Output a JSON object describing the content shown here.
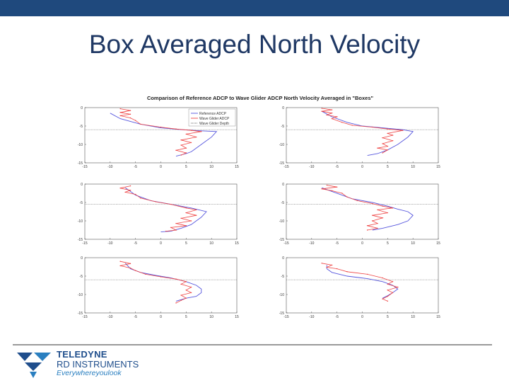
{
  "slide": {
    "title": "Box Averaged North Velocity"
  },
  "logo": {
    "line1": "TELEDYNE",
    "line2": "RD INSTRUMENTS",
    "tagline": "Everywhereyoulook",
    "colors": {
      "dark": "#1f4e8c",
      "light": "#2a7fc0"
    }
  },
  "chart_data": {
    "type": "line",
    "suptitle": "Comparison of Reference ADCP to Wave Glider ADCP North Velocity Averaged in \"Boxes\"",
    "legend": {
      "placement": "top-right of first panel",
      "entries": [
        {
          "name": "Reference ADCP",
          "color": "#5555dd",
          "style": "solid"
        },
        {
          "name": "Wave Glider ADCP",
          "color": "#ee4444",
          "style": "solid"
        },
        {
          "name": "Wave Glider Depth",
          "color": "#666666",
          "style": "dotted"
        }
      ]
    },
    "xlim": [
      -15,
      15
    ],
    "ylim": [
      -15,
      0
    ],
    "xticks": [
      -15,
      -10,
      -5,
      0,
      5,
      10,
      15
    ],
    "yticks": [
      0,
      -5,
      -10,
      -15
    ],
    "panels": [
      {
        "wg_depth": -6,
        "reference": [
          [
            -10,
            -1.5
          ],
          [
            -8,
            -3
          ],
          [
            -4,
            -4.5
          ],
          [
            0,
            -5.5
          ],
          [
            4,
            -6
          ],
          [
            8,
            -6.3
          ],
          [
            11,
            -6.5
          ],
          [
            10,
            -8
          ],
          [
            8,
            -10
          ],
          [
            6,
            -12
          ],
          [
            5,
            -12.5
          ],
          [
            3,
            -13.2
          ]
        ],
        "glider": [
          [
            -8,
            -0.3
          ],
          [
            -6,
            -0.8
          ],
          [
            -8,
            -1.3
          ],
          [
            -6,
            -1.8
          ],
          [
            -8,
            -2.2
          ],
          [
            -6,
            -2.8
          ],
          [
            -5,
            -3.5
          ],
          [
            -4,
            -4.5
          ],
          [
            0,
            -5.3
          ],
          [
            3,
            -5.8
          ],
          [
            6,
            -6.2
          ],
          [
            8,
            -6.5
          ],
          [
            5,
            -7.2
          ],
          [
            7,
            -8
          ],
          [
            4,
            -8.8
          ],
          [
            6,
            -9.5
          ],
          [
            4,
            -10.2
          ],
          [
            5,
            -11
          ],
          [
            3,
            -11.6
          ],
          [
            5,
            -12.3
          ],
          [
            4,
            -12.9
          ]
        ]
      },
      {
        "wg_depth": -6,
        "reference": [
          [
            -8,
            -1
          ],
          [
            -6,
            -2.5
          ],
          [
            -3,
            -4
          ],
          [
            0,
            -5
          ],
          [
            4,
            -5.5
          ],
          [
            8,
            -6
          ],
          [
            10,
            -6.5
          ],
          [
            9,
            -8
          ],
          [
            7,
            -10
          ],
          [
            5,
            -11.5
          ],
          [
            3,
            -12.5
          ],
          [
            1,
            -13
          ]
        ],
        "glider": [
          [
            -8,
            -0.2
          ],
          [
            -6,
            -0.6
          ],
          [
            -8,
            -1
          ],
          [
            -6,
            -1.5
          ],
          [
            -7,
            -2
          ],
          [
            -5,
            -2.5
          ],
          [
            -6,
            -3
          ],
          [
            -4,
            -4
          ],
          [
            -2,
            -4.8
          ],
          [
            2,
            -5.3
          ],
          [
            5,
            -5.8
          ],
          [
            8,
            -6.2
          ],
          [
            5,
            -7
          ],
          [
            6,
            -7.5
          ],
          [
            4,
            -8.2
          ],
          [
            6,
            -9
          ],
          [
            4,
            -9.8
          ],
          [
            5,
            -10.5
          ],
          [
            3,
            -11
          ],
          [
            5,
            -11.5
          ],
          [
            4,
            -12.3
          ]
        ]
      },
      {
        "wg_depth": -5.5,
        "reference": [
          [
            -7,
            -1
          ],
          [
            -6,
            -2
          ],
          [
            -5,
            -3
          ],
          [
            -2,
            -4.5
          ],
          [
            2,
            -5.5
          ],
          [
            6,
            -6.5
          ],
          [
            9,
            -7.5
          ],
          [
            8,
            -9
          ],
          [
            6,
            -11
          ],
          [
            4,
            -12
          ],
          [
            2,
            -12.8
          ],
          [
            0,
            -13
          ]
        ],
        "glider": [
          [
            -6,
            -0.5
          ],
          [
            -8,
            -1.1
          ],
          [
            -6,
            -1.7
          ],
          [
            -7,
            -2.2
          ],
          [
            -5,
            -2.8
          ],
          [
            -4,
            -3.8
          ],
          [
            -1,
            -4.8
          ],
          [
            2,
            -5.5
          ],
          [
            5,
            -6.5
          ],
          [
            7,
            -7
          ],
          [
            5,
            -7.8
          ],
          [
            7,
            -8.5
          ],
          [
            4,
            -9.3
          ],
          [
            6,
            -10
          ],
          [
            3,
            -10.7
          ],
          [
            5,
            -11.3
          ],
          [
            2,
            -11.8
          ],
          [
            3,
            -12.5
          ],
          [
            1,
            -12.8
          ]
        ]
      },
      {
        "wg_depth": -5.5,
        "reference": [
          [
            -8,
            -1
          ],
          [
            -6,
            -2
          ],
          [
            -4,
            -3
          ],
          [
            -2,
            -4
          ],
          [
            2,
            -5
          ],
          [
            5,
            -6
          ],
          [
            7,
            -6.8
          ],
          [
            9,
            -7.5
          ],
          [
            10,
            -8.5
          ],
          [
            9,
            -10
          ],
          [
            7,
            -11
          ],
          [
            4,
            -12
          ],
          [
            2,
            -12.5
          ]
        ],
        "glider": [
          [
            -7,
            -0.3
          ],
          [
            -5,
            -0.8
          ],
          [
            -8,
            -1.3
          ],
          [
            -6,
            -1.8
          ],
          [
            -4,
            -2.5
          ],
          [
            -3,
            -3.5
          ],
          [
            -1,
            -4.5
          ],
          [
            2,
            -5.3
          ],
          [
            4,
            -6
          ],
          [
            6,
            -6.5
          ],
          [
            3,
            -7
          ],
          [
            5,
            -7.8
          ],
          [
            2,
            -8.5
          ],
          [
            4,
            -9.2
          ],
          [
            2,
            -10
          ],
          [
            3,
            -10.7
          ],
          [
            1,
            -11.3
          ],
          [
            3,
            -12
          ],
          [
            1,
            -12.5
          ]
        ]
      },
      {
        "wg_depth": -6,
        "reference": [
          [
            -7,
            -1.5
          ],
          [
            -6,
            -3
          ],
          [
            -4,
            -4
          ],
          [
            -1,
            -4.8
          ],
          [
            2,
            -5.5
          ],
          [
            5,
            -6.5
          ],
          [
            7,
            -7.5
          ],
          [
            8,
            -8.5
          ],
          [
            8,
            -9.5
          ],
          [
            7,
            -10.5
          ],
          [
            5,
            -11
          ],
          [
            3,
            -11.8
          ]
        ],
        "glider": [
          [
            -8,
            -1
          ],
          [
            -6,
            -1.6
          ],
          [
            -8,
            -2.2
          ],
          [
            -6,
            -2.8
          ],
          [
            -5,
            -3.5
          ],
          [
            -3,
            -4.5
          ],
          [
            0,
            -5.2
          ],
          [
            3,
            -5.8
          ],
          [
            5,
            -6.5
          ],
          [
            4,
            -7.2
          ],
          [
            6,
            -8
          ],
          [
            5,
            -8.8
          ],
          [
            6,
            -9.5
          ],
          [
            4,
            -10.2
          ],
          [
            5,
            -11
          ],
          [
            4,
            -11.6
          ],
          [
            3,
            -12.3
          ]
        ]
      },
      {
        "wg_depth": -6,
        "reference": [
          [
            -7,
            -2
          ],
          [
            -7,
            -3
          ],
          [
            -6,
            -4
          ],
          [
            -3,
            -5
          ],
          [
            1,
            -5.7
          ],
          [
            4,
            -6.5
          ],
          [
            6,
            -7.5
          ],
          [
            7,
            -8.5
          ],
          [
            6,
            -9.5
          ],
          [
            5,
            -10.3
          ],
          [
            4,
            -11
          ]
        ],
        "glider": [
          [
            -8,
            -1.5
          ],
          [
            -6,
            -2
          ],
          [
            -7,
            -2.6
          ],
          [
            -5,
            -3
          ],
          [
            -3,
            -3.8
          ],
          [
            1,
            -4.5
          ],
          [
            4,
            -5.5
          ],
          [
            6,
            -6.5
          ],
          [
            5,
            -7.2
          ],
          [
            7,
            -8
          ],
          [
            5,
            -8.8
          ],
          [
            6,
            -9.5
          ],
          [
            5,
            -10.5
          ],
          [
            4,
            -11.2
          ],
          [
            5,
            -11.8
          ]
        ]
      }
    ]
  }
}
